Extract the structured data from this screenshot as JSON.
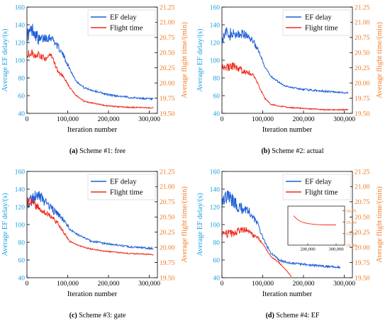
{
  "colors": {
    "delay": "#1f5fd6",
    "flight": "#ee2a1b",
    "left_axis": "#1aa0e0",
    "right_axis": "#f07a24",
    "inset_line": "#ee2a1b"
  },
  "captions": [
    {
      "letter": "(a)",
      "text": " Scheme #1: free"
    },
    {
      "letter": "(b)",
      "text": " Scheme #2: actual"
    },
    {
      "letter": "(c)",
      "text": " Scheme #3: gate"
    },
    {
      "letter": "(d)",
      "text": " Scheme #4: EF"
    }
  ],
  "chart_data": [
    {
      "type": "line",
      "id": "a",
      "xlabel": "Iteration number",
      "ylabel": "Average EF delay/(s)",
      "y2label": "Average flight time/(min)",
      "xlim": [
        0,
        320000
      ],
      "ylim": [
        40,
        160
      ],
      "y2lim": [
        19.5,
        21.25
      ],
      "xticks": [
        0,
        100000,
        200000,
        300000
      ],
      "xtick_labels": [
        "0",
        "100,000",
        "200,000",
        "300,000"
      ],
      "yticks": [
        40,
        60,
        80,
        100,
        120,
        140,
        160
      ],
      "y2ticks": [
        19.5,
        19.75,
        20.0,
        20.25,
        20.5,
        20.75,
        21.0,
        21.25
      ],
      "y2tick_labels": [
        "19.50",
        "19.75",
        "20.00",
        "20.25",
        "20.50",
        "20.75",
        "21.00",
        "21.25"
      ],
      "legend_position": "top-right",
      "series": [
        {
          "name": "EF delay",
          "axis": "left",
          "noise": 9,
          "x": [
            0,
            15000,
            30000,
            45000,
            60000,
            75000,
            90000,
            105000,
            120000,
            140000,
            160000,
            200000,
            250000,
            310000
          ],
          "y": [
            128,
            135,
            122,
            126,
            126,
            116,
            105,
            90,
            77,
            69,
            66,
            61,
            58,
            56
          ]
        },
        {
          "name": "Flight time",
          "axis": "right",
          "noise": 0.08,
          "x": [
            0,
            15000,
            30000,
            45000,
            60000,
            75000,
            90000,
            105000,
            120000,
            140000,
            160000,
            200000,
            250000,
            310000
          ],
          "y": [
            20.5,
            20.48,
            20.45,
            20.4,
            20.46,
            20.2,
            20.1,
            19.92,
            19.8,
            19.7,
            19.67,
            19.62,
            19.6,
            19.59
          ]
        }
      ]
    },
    {
      "type": "line",
      "id": "b",
      "xlabel": "Iteration number",
      "ylabel": "Average EF delay/(s)",
      "y2label": "Average flight time/(min)",
      "xlim": [
        0,
        320000
      ],
      "ylim": [
        40,
        160
      ],
      "y2lim": [
        19.5,
        21.25
      ],
      "xticks": [
        0,
        100000,
        200000,
        300000
      ],
      "xtick_labels": [
        "0",
        "100,000",
        "200,000",
        "300,000"
      ],
      "yticks": [
        40,
        60,
        80,
        100,
        120,
        140,
        160
      ],
      "y2ticks": [
        19.5,
        19.75,
        20.0,
        20.25,
        20.5,
        20.75,
        21.0,
        21.25
      ],
      "y2tick_labels": [
        "19.50",
        "19.75",
        "20.00",
        "20.25",
        "20.50",
        "20.75",
        "21.00",
        "21.25"
      ],
      "legend_position": "top-right",
      "series": [
        {
          "name": "EF delay",
          "axis": "left",
          "noise": 9,
          "x": [
            0,
            15000,
            30000,
            45000,
            60000,
            75000,
            90000,
            105000,
            120000,
            140000,
            160000,
            200000,
            250000,
            310000
          ],
          "y": [
            128,
            130,
            128,
            130,
            128,
            123,
            110,
            92,
            82,
            75,
            70,
            67,
            65,
            63
          ]
        },
        {
          "name": "Flight time",
          "axis": "right",
          "noise": 0.08,
          "x": [
            0,
            15000,
            30000,
            45000,
            60000,
            75000,
            90000,
            105000,
            120000,
            140000,
            160000,
            200000,
            250000,
            310000
          ],
          "y": [
            20.3,
            20.25,
            20.28,
            20.22,
            20.18,
            20.15,
            19.95,
            19.75,
            19.65,
            19.62,
            19.6,
            19.58,
            19.56,
            19.56
          ]
        }
      ]
    },
    {
      "type": "line",
      "id": "c",
      "xlabel": "Iteration number",
      "ylabel": "Average EF delay/(s)",
      "y2label": "Average flight time/(min)",
      "xlim": [
        0,
        320000
      ],
      "ylim": [
        40,
        160
      ],
      "y2lim": [
        19.5,
        21.25
      ],
      "xticks": [
        0,
        100000,
        200000,
        300000
      ],
      "xtick_labels": [
        "0",
        "100,000",
        "200,000",
        "300,000"
      ],
      "yticks": [
        40,
        60,
        80,
        100,
        120,
        140,
        160
      ],
      "y2ticks": [
        19.5,
        19.75,
        20.0,
        20.25,
        20.5,
        20.75,
        21.0,
        21.25
      ],
      "y2tick_labels": [
        "19.50",
        "19.75",
        "20.00",
        "20.25",
        "20.50",
        "20.75",
        "21.00",
        "21.25"
      ],
      "legend_position": "top-right",
      "series": [
        {
          "name": "EF delay",
          "axis": "left",
          "noise": 9,
          "x": [
            0,
            15000,
            30000,
            45000,
            60000,
            75000,
            90000,
            105000,
            120000,
            140000,
            160000,
            200000,
            250000,
            310000
          ],
          "y": [
            125,
            130,
            132,
            125,
            118,
            112,
            105,
            95,
            90,
            85,
            81,
            78,
            75,
            73
          ]
        },
        {
          "name": "Flight time",
          "axis": "right",
          "noise": 0.08,
          "x": [
            0,
            15000,
            30000,
            45000,
            60000,
            75000,
            90000,
            105000,
            120000,
            140000,
            160000,
            200000,
            250000,
            310000
          ],
          "y": [
            20.75,
            20.72,
            20.65,
            20.58,
            20.5,
            20.4,
            20.25,
            20.1,
            20.05,
            20.0,
            19.97,
            19.93,
            19.9,
            19.88
          ]
        }
      ]
    },
    {
      "type": "line",
      "id": "d",
      "xlabel": "Iteration number",
      "ylabel": "Average EF delay/(s)",
      "y2label": "Average flight time/(min)",
      "xlim": [
        0,
        320000
      ],
      "ylim": [
        40,
        160
      ],
      "y2lim": [
        19.5,
        21.25
      ],
      "xticks": [
        0,
        100000,
        200000,
        300000
      ],
      "xtick_labels": [
        "0",
        "100,000",
        "200,000",
        "300,000"
      ],
      "yticks": [
        40,
        60,
        80,
        100,
        120,
        140,
        160
      ],
      "y2ticks": [
        19.5,
        19.75,
        20.0,
        20.25,
        20.5,
        20.75,
        21.0,
        21.25
      ],
      "y2tick_labels": [
        "19.50",
        "19.75",
        "20.00",
        "20.25",
        "20.50",
        "20.75",
        "21.00",
        "21.25"
      ],
      "legend_position": "top-right",
      "series": [
        {
          "name": "EF delay",
          "axis": "left",
          "noise": 10,
          "x": [
            0,
            15000,
            30000,
            45000,
            60000,
            75000,
            90000,
            105000,
            120000,
            140000,
            160000,
            200000,
            250000,
            290000
          ],
          "y": [
            130,
            132,
            125,
            118,
            118,
            110,
            98,
            80,
            68,
            60,
            57,
            55,
            53,
            52
          ]
        },
        {
          "name": "Flight time",
          "axis": "right",
          "noise": 0.08,
          "x": [
            0,
            15000,
            30000,
            45000,
            60000,
            75000,
            90000,
            105000,
            120000,
            140000,
            150000,
            160000,
            170000
          ],
          "y": [
            20.25,
            20.22,
            20.24,
            20.28,
            20.3,
            20.2,
            20.15,
            20.0,
            19.85,
            19.75,
            19.68,
            19.6,
            19.52
          ]
        }
      ],
      "inset": {
        "xlim": [
          130000,
          330000
        ],
        "ylim": [
          19.0,
          19.85
        ],
        "xticks": [
          200000,
          300000
        ],
        "xtick_labels": [
          "200,000",
          "300,000"
        ],
        "yticks": [
          19.0,
          19.25,
          19.5,
          19.75
        ],
        "ytick_labels": [
          "19.00",
          "19.25",
          "19.50",
          "19.75"
        ],
        "series": [
          {
            "x": [
              150000,
              165000,
              180000,
              200000,
              230000,
              260000,
              300000
            ],
            "y": [
              19.64,
              19.55,
              19.5,
              19.47,
              19.45,
              19.44,
              19.44
            ]
          }
        ]
      }
    }
  ]
}
